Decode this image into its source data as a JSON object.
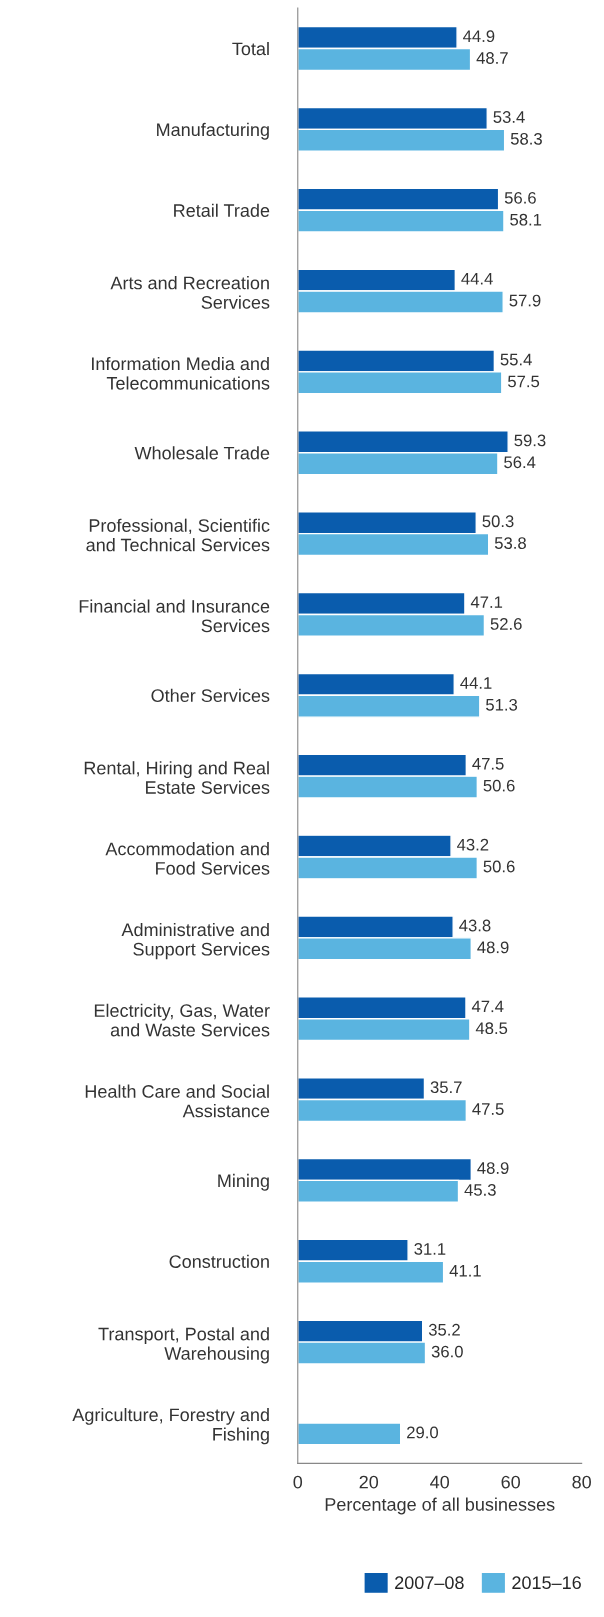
{
  "chart_data": {
    "type": "bar",
    "orientation": "horizontal",
    "categories": [
      "Total",
      "Manufacturing",
      "Retail Trade",
      "Arts and Recreation\nServices",
      "Information Media and\nTelecommunications",
      "Wholesale Trade",
      "Professional, Scientific\nand Technical Services",
      "Financial and Insurance\nServices",
      "Other Services",
      "Rental, Hiring and Real\nEstate Services",
      "Accommodation and\nFood Services",
      "Administrative and\nSupport Services",
      "Electricity, Gas, Water\nand Waste Services",
      "Health Care and Social\nAssistance",
      "Mining",
      "Construction",
      "Transport, Postal and\nWarehousing",
      "Agriculture, Forestry and\nFishing"
    ],
    "series": [
      {
        "name": "2007–08",
        "color": "#0a5cad",
        "values": [
          44.9,
          53.4,
          56.6,
          44.4,
          55.4,
          59.3,
          50.3,
          47.1,
          44.1,
          47.5,
          43.2,
          43.8,
          47.4,
          35.7,
          48.9,
          31.1,
          35.2,
          null
        ],
        "value_labels": [
          "44.9",
          "53.4",
          "56.6",
          "44.4",
          "55.4",
          "59.3",
          "50.3",
          "47.1",
          "44.1",
          "47.5",
          "43.2",
          "43.8",
          "47.4",
          "35.7",
          "48.9",
          "31.1",
          "35.2",
          null
        ]
      },
      {
        "name": "2015–16",
        "color": "#5ab4e0",
        "values": [
          48.7,
          58.3,
          58.1,
          57.9,
          57.5,
          56.4,
          53.8,
          52.6,
          51.3,
          50.6,
          50.6,
          48.9,
          48.5,
          47.5,
          45.3,
          41.1,
          36.0,
          29.0
        ],
        "value_labels": [
          "48.7",
          "58.3",
          "58.1",
          "57.9",
          "57.5",
          "56.4",
          "53.8",
          "52.6",
          "51.3",
          "50.6",
          "50.6",
          "48.9",
          "48.5",
          "47.5",
          "45.3",
          "41.1",
          "36.0",
          "29.0"
        ]
      }
    ],
    "xlim": [
      0,
      80
    ],
    "xticks": [
      0,
      20,
      40,
      60,
      80
    ],
    "xlabel": "Percentage of all businesses",
    "grid": false,
    "legend": "bottom right"
  }
}
